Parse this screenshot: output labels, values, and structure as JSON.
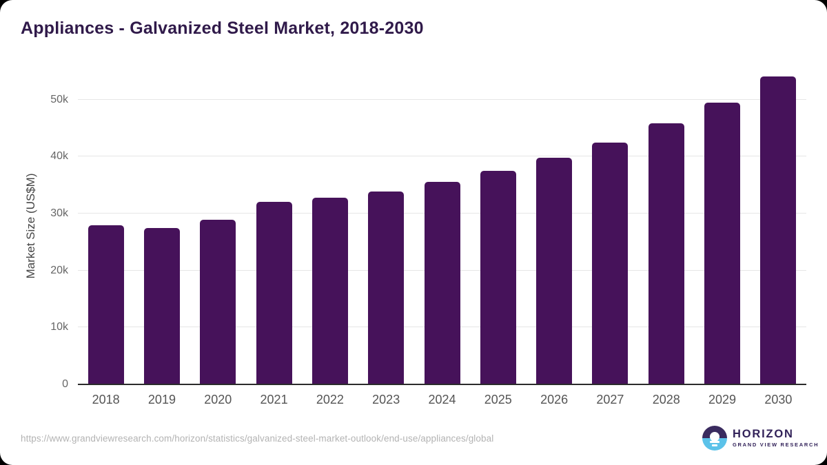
{
  "page": {
    "title": "Appliances - Galvanized Steel Market, 2018-2030"
  },
  "chart_data": {
    "type": "bar",
    "title": "Appliances - Galvanized Steel Market, 2018-2030",
    "xlabel": "",
    "ylabel": "Market Size (US$M)",
    "unit": "US$M",
    "categories": [
      "2018",
      "2019",
      "2020",
      "2021",
      "2022",
      "2023",
      "2024",
      "2025",
      "2026",
      "2027",
      "2028",
      "2029",
      "2030"
    ],
    "values": [
      27900,
      27400,
      28900,
      32100,
      32800,
      33900,
      35600,
      37500,
      39800,
      42500,
      45800,
      49500,
      54100
    ],
    "ylim": [
      0,
      56000
    ],
    "yticks": [
      0,
      10000,
      20000,
      30000,
      40000,
      50000
    ],
    "ytick_labels": [
      "0",
      "10k",
      "20k",
      "30k",
      "40k",
      "50k"
    ],
    "grid": true,
    "legend": false,
    "bar_color": "#46125A"
  },
  "footer": {
    "source_url": "https://www.grandviewresearch.com/horizon/statistics/galvanized-steel-market-outlook/end-use/appliances/global",
    "logo": {
      "brand": "HORIZON",
      "tagline": "GRAND VIEW RESEARCH"
    }
  },
  "colors": {
    "bar": "#46125A",
    "title_text": "#301A4A",
    "axis_text": "#666666",
    "x_label_text": "#555555",
    "gridline": "#E6E6E6",
    "axis_line": "#2B2B2B",
    "url_text": "#B3B3B3",
    "logo_purple": "#3A2B5F",
    "logo_blue": "#5BC2E9",
    "logo_text": "#322259"
  }
}
